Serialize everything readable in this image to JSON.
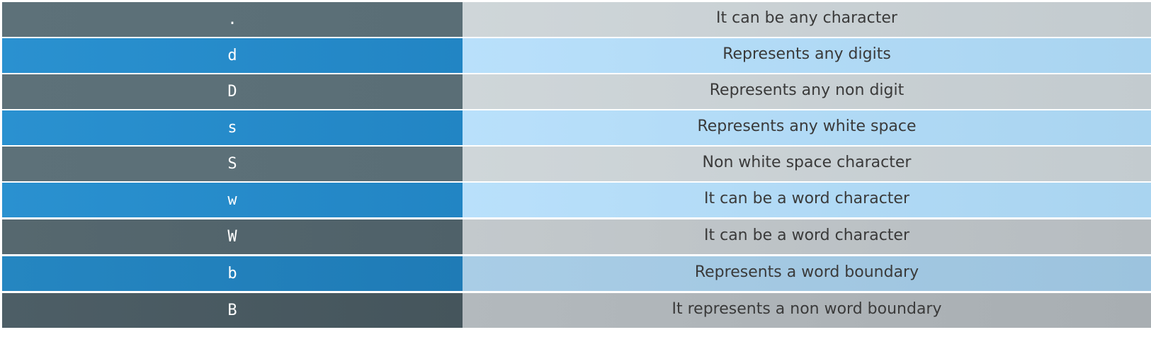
{
  "rows": [
    {
      "key": ".",
      "description": "It can be any character"
    },
    {
      "key": "d",
      "description": "Represents any digits"
    },
    {
      "key": "D",
      "description": "Represents any non digit"
    },
    {
      "key": "s",
      "description": "Represents any white space"
    },
    {
      "key": "S",
      "description": "Non white space character"
    },
    {
      "key": "w",
      "description": "It can be a word character"
    },
    {
      "key": "W",
      "description": "It can be a word character"
    },
    {
      "key": "b",
      "description": "Represents a word boundary"
    },
    {
      "key": "B",
      "description": "It represents a non word boundary"
    }
  ],
  "colors": {
    "gray_key": "#5d7179",
    "gray_desc": "#cfd6d9",
    "blue_key": "#2a91d0",
    "blue_desc": "#b9e0fb",
    "text_dark": "#3a3a3a",
    "text_light": "#ffffff"
  }
}
